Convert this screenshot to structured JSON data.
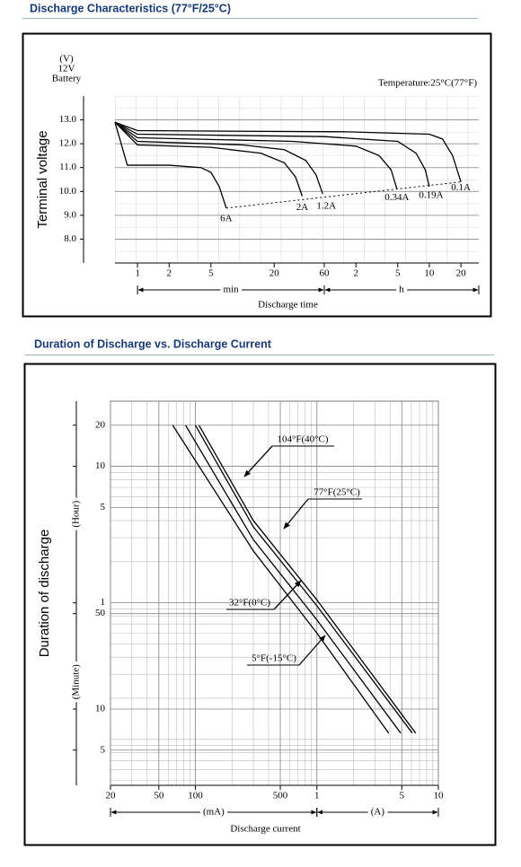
{
  "chart_data": [
    {
      "type": "line",
      "title": "Discharge Characteristics (77°F/25°C)",
      "y_unit_lines": [
        "(V)",
        "12V",
        "Battery"
      ],
      "y_label": "Terminal voltage",
      "annotation": "Temperature:25°C(77°F)",
      "x_label": "Discharge time",
      "x_unit_labels": [
        "min",
        "h"
      ],
      "xscale": "log",
      "yscale": "linear",
      "grid": true,
      "xlim": [
        0.61,
        1775
      ],
      "ylim": [
        7,
        14
      ],
      "xticks": [
        1,
        2,
        5,
        20,
        60,
        {
          "value": 120,
          "label": "2"
        },
        {
          "value": 300,
          "label": "5"
        },
        {
          "value": 600,
          "label": "10"
        },
        {
          "value": 1200,
          "label": "20"
        }
      ],
      "yticks": [
        {
          "value": 8,
          "label": "8.0"
        },
        {
          "value": 9,
          "label": "9.0"
        },
        {
          "value": 10,
          "label": "10.0"
        },
        {
          "value": 11,
          "label": "11.0"
        },
        {
          "value": 12,
          "label": "12.0"
        },
        {
          "value": 13,
          "label": "13.0"
        }
      ],
      "series": [
        {
          "name": "6A",
          "color": "#000000",
          "x": [
            0.61,
            0.8,
            2,
            4,
            5,
            6,
            7
          ],
          "values": [
            12.9,
            11.1,
            11.1,
            11.0,
            10.8,
            10.2,
            9.3
          ]
        },
        {
          "name": "2A",
          "color": "#000000",
          "x": [
            0.61,
            1,
            5,
            15,
            25,
            32,
            37
          ],
          "values": [
            12.9,
            11.95,
            11.85,
            11.6,
            11.2,
            10.6,
            9.8
          ]
        },
        {
          "name": "1.2A",
          "color": "#000000",
          "x": [
            0.61,
            1,
            10,
            25,
            40,
            50,
            58
          ],
          "values": [
            12.9,
            12.1,
            11.95,
            11.75,
            11.3,
            10.7,
            9.9
          ]
        },
        {
          "name": "0.34A",
          "color": "#000000",
          "x": [
            0.61,
            1,
            30,
            120,
            200,
            260,
            295
          ],
          "values": [
            12.9,
            12.25,
            12.1,
            11.9,
            11.5,
            10.9,
            10.1
          ]
        },
        {
          "name": "0.19A",
          "color": "#000000",
          "x": [
            0.61,
            1,
            60,
            300,
            450,
            550,
            600
          ],
          "values": [
            12.9,
            12.4,
            12.3,
            12.1,
            11.6,
            10.9,
            10.2
          ]
        },
        {
          "name": "0.1A",
          "color": "#000000",
          "x": [
            0.61,
            1,
            100,
            600,
            800,
            1000,
            1200
          ],
          "values": [
            12.9,
            12.55,
            12.5,
            12.4,
            12.2,
            11.5,
            10.4
          ]
        }
      ]
    },
    {
      "type": "line",
      "title": "Duration of Discharge vs. Discharge Current",
      "y_label": "Duration of discharge",
      "y_unit_labels": [
        "(Hour)",
        "(Minute)"
      ],
      "x_label": "Discharge current",
      "x_unit_labels": [
        "(mA)",
        "(A)"
      ],
      "xscale": "log",
      "yscale": "log",
      "grid": true,
      "xlim": [
        0.02,
        10
      ],
      "ylim": [
        0.046,
        30
      ],
      "xticks": [
        {
          "value": 0.02,
          "label": "20"
        },
        {
          "value": 0.05,
          "label": "50"
        },
        {
          "value": 0.1,
          "label": "100"
        },
        {
          "value": 0.5,
          "label": "500"
        },
        1,
        5,
        10
      ],
      "yticks": [
        20,
        10,
        5,
        1,
        {
          "value": 0.8333,
          "label": "50"
        },
        {
          "value": 0.16667,
          "label": "10"
        },
        {
          "value": 0.08333,
          "label": "5"
        }
      ],
      "series": [
        {
          "name": "104°F(40°C)",
          "color": "#000000",
          "x": [
            0.107,
            0.3,
            1,
            6.5
          ],
          "values": [
            20,
            4,
            1.05,
            0.111
          ]
        },
        {
          "name": "77°F(25°C)",
          "color": "#000000",
          "x": [
            0.1,
            0.3,
            1,
            6.1
          ],
          "values": [
            20,
            3.6,
            0.95,
            0.111
          ]
        },
        {
          "name": "32°F(0°C)",
          "color": "#000000",
          "x": [
            0.083,
            0.3,
            1,
            4.9
          ],
          "values": [
            20,
            2.9,
            0.75,
            0.111
          ]
        },
        {
          "name": "5°F(-15°C)",
          "color": "#000000",
          "x": [
            0.065,
            0.3,
            1,
            3.9
          ],
          "values": [
            20,
            2.4,
            0.6,
            0.111
          ]
        }
      ]
    }
  ]
}
